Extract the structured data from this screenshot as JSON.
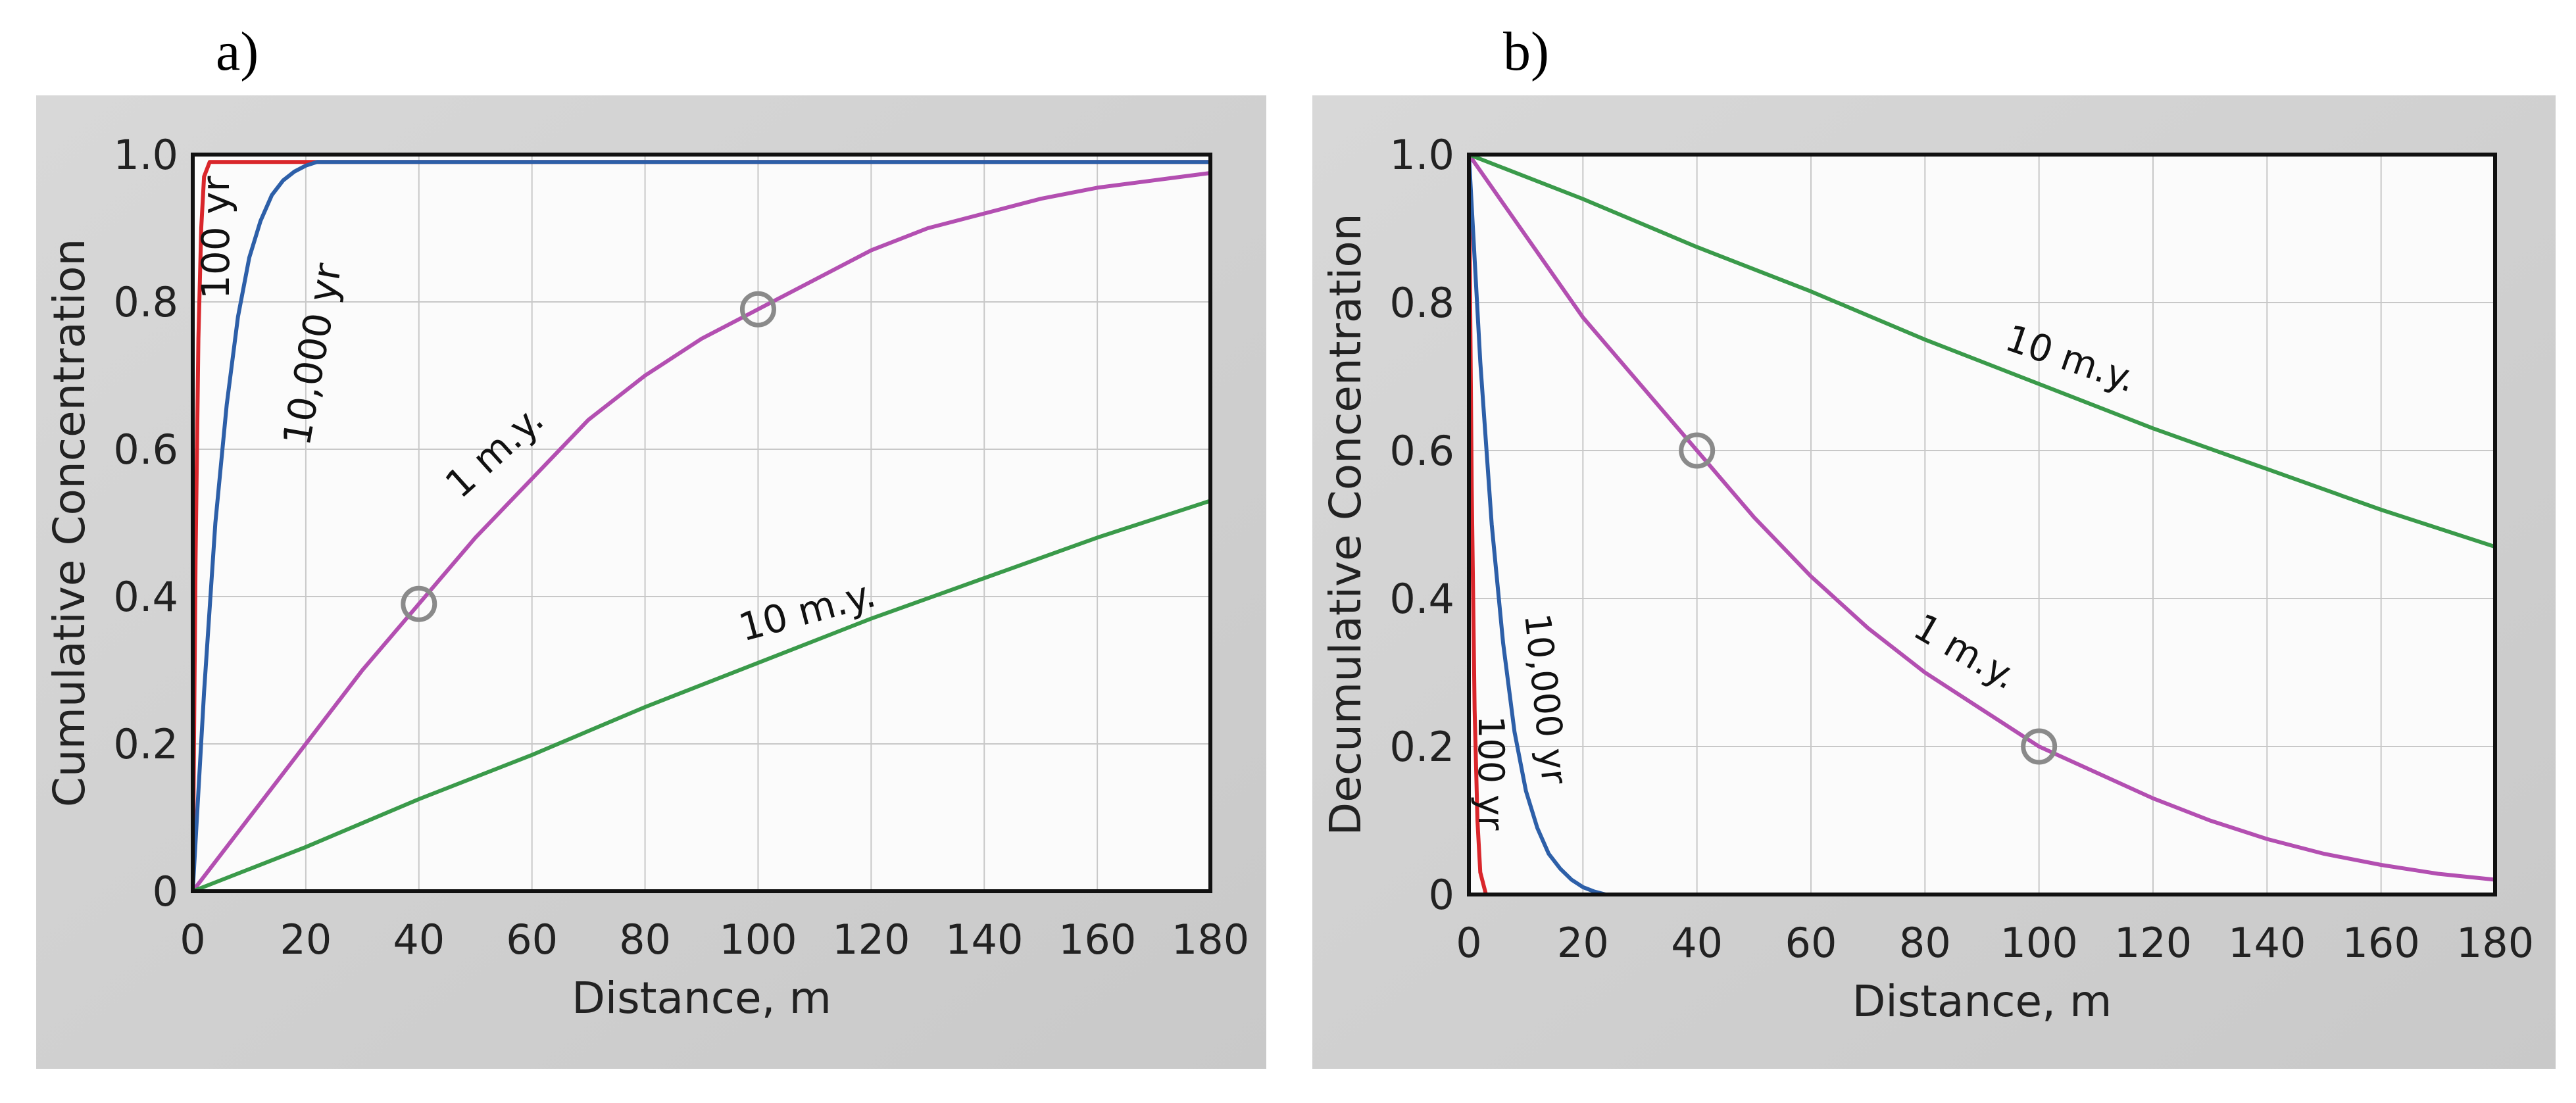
{
  "panels": [
    {
      "label": "a)",
      "chart_data": {
        "type": "line",
        "xlabel": "Distance, m",
        "ylabel": "Cumulative  Concentration",
        "xlim": [
          0,
          180
        ],
        "ylim": [
          0,
          1.0
        ],
        "xticks": [
          "0",
          "20",
          "40",
          "60",
          "80",
          "100",
          "120",
          "140",
          "160",
          "180"
        ],
        "yticks": [
          "0",
          "0.2",
          "0.4",
          "0.6",
          "0.8",
          "1.0"
        ],
        "grid": true,
        "series": [
          {
            "name": "100 yr",
            "color": "#d9262b",
            "x": [
              0,
              0.5,
              1,
              1.5,
              2,
              3,
              180
            ],
            "y": [
              0,
              0.45,
              0.75,
              0.9,
              0.97,
              0.99,
              0.99
            ]
          },
          {
            "name": "10,000 yr",
            "color": "#2d5fa8",
            "x": [
              0,
              2,
              4,
              6,
              8,
              10,
              12,
              14,
              16,
              18,
              20,
              22,
              24,
              180
            ],
            "y": [
              0,
              0.27,
              0.5,
              0.66,
              0.78,
              0.86,
              0.91,
              0.945,
              0.965,
              0.977,
              0.985,
              0.99,
              0.99,
              0.99
            ]
          },
          {
            "name": "1 m.y.",
            "color": "#b34fb1",
            "x": [
              0,
              10,
              20,
              30,
              40,
              50,
              60,
              70,
              80,
              90,
              100,
              110,
              120,
              130,
              140,
              150,
              160,
              170,
              180
            ],
            "y": [
              0,
              0.1,
              0.2,
              0.3,
              0.39,
              0.48,
              0.56,
              0.64,
              0.7,
              0.75,
              0.79,
              0.83,
              0.87,
              0.9,
              0.92,
              0.94,
              0.955,
              0.965,
              0.975
            ]
          },
          {
            "name": "10 m.y.",
            "color": "#3a9a4a",
            "x": [
              0,
              20,
              40,
              60,
              80,
              100,
              120,
              140,
              160,
              180
            ],
            "y": [
              0,
              0.06,
              0.125,
              0.185,
              0.25,
              0.31,
              0.37,
              0.425,
              0.48,
              0.53
            ]
          }
        ],
        "markers": [
          {
            "x": 40,
            "y": 0.39
          },
          {
            "x": 100,
            "y": 0.79
          }
        ]
      }
    },
    {
      "label": "b)",
      "chart_data": {
        "type": "line",
        "xlabel": "Distance, m",
        "ylabel": "Decumulative  Concentration",
        "xlim": [
          0,
          180
        ],
        "ylim": [
          0,
          1.0
        ],
        "xticks": [
          "0",
          "20",
          "40",
          "60",
          "80",
          "100",
          "120",
          "140",
          "160",
          "180"
        ],
        "yticks": [
          "0",
          "0.2",
          "0.4",
          "0.6",
          "0.8",
          "1.0"
        ],
        "grid": true,
        "series": [
          {
            "name": "100 yr",
            "color": "#d9262b",
            "x": [
              0,
              0.5,
              1,
              1.5,
              2,
              3,
              180
            ],
            "y": [
              1.0,
              0.55,
              0.25,
              0.1,
              0.03,
              0,
              0
            ]
          },
          {
            "name": "10,000 yr",
            "color": "#2d5fa8",
            "x": [
              0,
              2,
              4,
              6,
              8,
              10,
              12,
              14,
              16,
              18,
              20,
              22,
              24,
              180
            ],
            "y": [
              1.0,
              0.72,
              0.5,
              0.34,
              0.22,
              0.14,
              0.09,
              0.055,
              0.035,
              0.02,
              0.01,
              0.004,
              0,
              0
            ]
          },
          {
            "name": "1 m.y.",
            "color": "#b34fb1",
            "x": [
              0,
              10,
              20,
              30,
              40,
              50,
              60,
              70,
              80,
              90,
              100,
              110,
              120,
              130,
              140,
              150,
              160,
              170,
              180
            ],
            "y": [
              1.0,
              0.89,
              0.78,
              0.69,
              0.6,
              0.51,
              0.43,
              0.36,
              0.3,
              0.25,
              0.2,
              0.165,
              0.13,
              0.1,
              0.075,
              0.055,
              0.04,
              0.028,
              0.02
            ]
          },
          {
            "name": "10 m.y.",
            "color": "#3a9a4a",
            "x": [
              0,
              20,
              40,
              60,
              80,
              100,
              120,
              140,
              160,
              180
            ],
            "y": [
              1.0,
              0.94,
              0.875,
              0.815,
              0.75,
              0.69,
              0.63,
              0.575,
              0.52,
              0.47
            ]
          }
        ],
        "markers": [
          {
            "x": 40,
            "y": 0.6
          },
          {
            "x": 100,
            "y": 0.2
          }
        ]
      }
    }
  ],
  "curve_labels": {
    "a": [
      "100 yr",
      "10,000 yr",
      "1 m.y.",
      "10 m.y."
    ],
    "b": [
      "10,000 yr",
      "100 yr",
      "1 m.y.",
      "10 m.y."
    ]
  }
}
